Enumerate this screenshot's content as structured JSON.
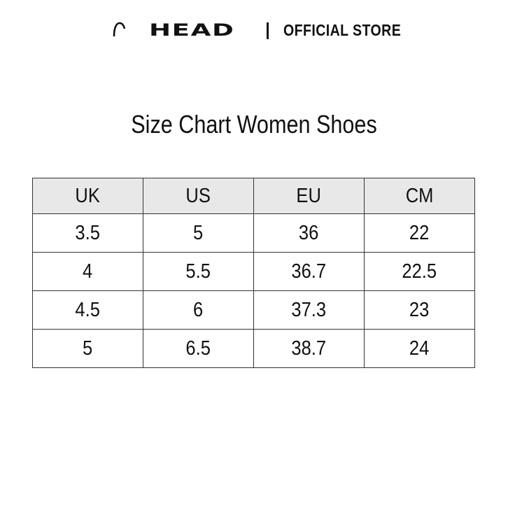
{
  "header": {
    "brand": "HEAD",
    "separator": "|",
    "store_label": "OFFICIAL STORE"
  },
  "title": "Size Chart Women Shoes",
  "table": {
    "columns": [
      "UK",
      "US",
      "EU",
      "CM"
    ],
    "rows": [
      [
        "3.5",
        "5",
        "36",
        "22"
      ],
      [
        "4",
        "5.5",
        "36.7",
        "22.5"
      ],
      [
        "4.5",
        "6",
        "37.3",
        "23"
      ],
      [
        "5",
        "6.5",
        "38.7",
        "24"
      ]
    ],
    "header_bg": "#e8e8e8"
  }
}
